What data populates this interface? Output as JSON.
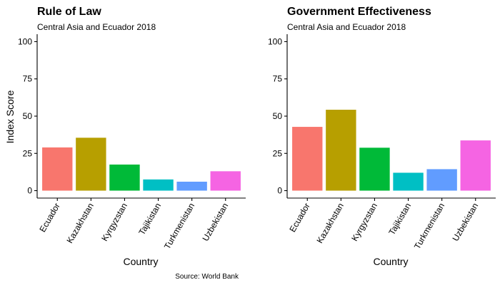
{
  "caption": "Source: World Bank",
  "colors": [
    "#F8766D",
    "#B79F00",
    "#00BA38",
    "#00BFC4",
    "#619CFF",
    "#F564E3"
  ],
  "chart_data": [
    {
      "type": "bar",
      "title": "Rule of Law",
      "subtitle": "Central Asia and Ecuador 2018",
      "xlabel": "Country",
      "ylabel": "Index Score",
      "categories": [
        "Ecuador",
        "Kazakhstan",
        "Kyrgyzstan",
        "Tajikistan",
        "Turkmenistan",
        "Uzbekistan"
      ],
      "values": [
        29,
        35.5,
        17.5,
        7.5,
        6,
        13
      ],
      "ylim": [
        0,
        100
      ],
      "yticks": [
        0,
        25,
        50,
        75,
        100
      ],
      "grid": false,
      "legend": "none"
    },
    {
      "type": "bar",
      "title": "Government Effectiveness",
      "subtitle": "Central Asia and Ecuador 2018",
      "xlabel": "Country",
      "ylabel": "",
      "categories": [
        "Ecuador",
        "Kazakhstan",
        "Kyrgyzstan",
        "Tajikistan",
        "Turkmenistan",
        "Uzbekistan"
      ],
      "values": [
        42.8,
        54.3,
        28.8,
        12,
        14.4,
        33.7
      ],
      "ylim": [
        0,
        100
      ],
      "yticks": [
        0,
        25,
        50,
        75,
        100
      ],
      "grid": false,
      "legend": "none"
    }
  ]
}
